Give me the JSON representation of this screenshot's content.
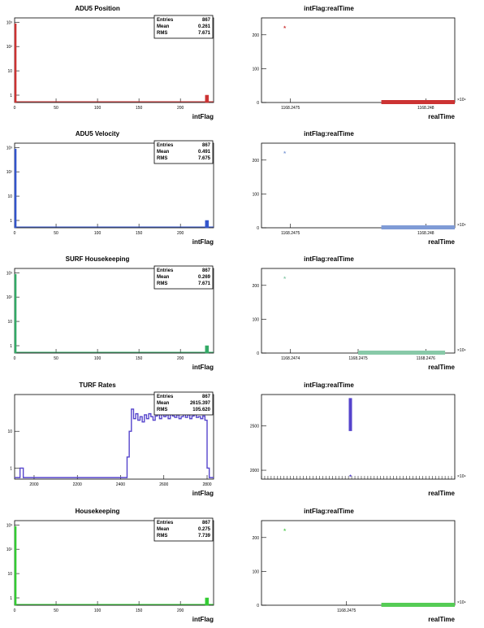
{
  "page": {
    "background": "#ffffff"
  },
  "chart_data": [
    {
      "id": "p0-hist",
      "type": "bar",
      "title": "ADU5 Position",
      "xlabel": "intFlag",
      "ylabel": "",
      "log_y": true,
      "color": "#cc3333",
      "stats": [
        {
          "k": "Entries",
          "v": "867"
        },
        {
          "k": "Mean",
          "v": "0.261"
        },
        {
          "k": "RMS",
          "v": "7.671"
        }
      ],
      "xticks": [
        "0",
        "50",
        "100",
        "150",
        "200"
      ],
      "yticks": [
        "1",
        "10",
        "10²",
        "10³"
      ],
      "xlim": [
        0,
        240
      ],
      "ylim": [
        0.5,
        1500
      ],
      "bars": [
        {
          "x": 0,
          "w": 2,
          "y": 866
        },
        {
          "x": 230,
          "w": 4,
          "y": 1
        }
      ]
    },
    {
      "id": "p0-scat",
      "type": "scatter",
      "title": "intFlag:realTime",
      "xlabel": "realTime",
      "ylabel": "",
      "color": "#cc3333",
      "x_exponent": "×10⁹",
      "xticks": [
        "1168.2475",
        "1168.248"
      ],
      "yticks": [
        "0",
        "100",
        "200"
      ],
      "ylim": [
        0,
        250
      ],
      "points": [
        {
          "x": 0.12,
          "y": 225
        }
      ],
      "band": {
        "x_from": 0.62,
        "x_to": 1.0,
        "y": 0
      }
    },
    {
      "id": "p1-hist",
      "type": "bar",
      "title": "ADU5 Velocity",
      "xlabel": "intFlag",
      "ylabel": "",
      "log_y": true,
      "color": "#3355cc",
      "stats": [
        {
          "k": "Entries",
          "v": "867"
        },
        {
          "k": "Mean",
          "v": "0.491"
        },
        {
          "k": "RMS",
          "v": "7.675"
        }
      ],
      "xticks": [
        "0",
        "50",
        "100",
        "150",
        "200"
      ],
      "yticks": [
        "1",
        "10",
        "10²",
        "10³"
      ],
      "xlim": [
        0,
        240
      ],
      "ylim": [
        0.5,
        1500
      ],
      "bars": [
        {
          "x": 0,
          "w": 2,
          "y": 866
        },
        {
          "x": 230,
          "w": 4,
          "y": 1
        }
      ]
    },
    {
      "id": "p1-scat",
      "type": "scatter",
      "title": "intFlag:realTime",
      "xlabel": "realTime",
      "ylabel": "",
      "color": "#7f9bd6",
      "x_exponent": "×10⁹",
      "xticks": [
        "1168.2475",
        "1168.248"
      ],
      "yticks": [
        "0",
        "100",
        "200"
      ],
      "ylim": [
        0,
        250
      ],
      "points": [
        {
          "x": 0.12,
          "y": 225
        }
      ],
      "band": {
        "x_from": 0.62,
        "x_to": 1.0,
        "y": 0
      }
    },
    {
      "id": "p2-hist",
      "type": "bar",
      "title": "SURF Housekeeping",
      "xlabel": "intFlag",
      "ylabel": "",
      "log_y": true,
      "color": "#33aa66",
      "stats": [
        {
          "k": "Entries",
          "v": "867"
        },
        {
          "k": "Mean",
          "v": "0.269"
        },
        {
          "k": "RMS",
          "v": "7.671"
        }
      ],
      "xticks": [
        "0",
        "50",
        "100",
        "150",
        "200"
      ],
      "yticks": [
        "1",
        "10",
        "10²",
        "10³"
      ],
      "xlim": [
        0,
        240
      ],
      "ylim": [
        0.5,
        1500
      ],
      "bars": [
        {
          "x": 0,
          "w": 2,
          "y": 866
        },
        {
          "x": 230,
          "w": 4,
          "y": 1
        }
      ]
    },
    {
      "id": "p2-scat",
      "type": "scatter",
      "title": "intFlag:realTime",
      "xlabel": "realTime",
      "ylabel": "",
      "color": "#88c9a8",
      "x_exponent": "×10⁹",
      "xticks": [
        "1168.2474",
        "1168.2475",
        "1168.2476"
      ],
      "yticks": [
        "0",
        "100",
        "200"
      ],
      "ylim": [
        0,
        250
      ],
      "points": [
        {
          "x": 0.12,
          "y": 225
        }
      ],
      "band": {
        "x_from": 0.5,
        "x_to": 0.95,
        "y": 0
      }
    },
    {
      "id": "p3-hist",
      "type": "bar",
      "title": "TURF Rates",
      "xlabel": "intFlag",
      "ylabel": "",
      "log_y": true,
      "color": "#5544cc",
      "stats": [
        {
          "k": "Entries",
          "v": "867"
        },
        {
          "k": "Mean",
          "v": "2615.397"
        },
        {
          "k": "RMS",
          "v": "105.620"
        }
      ],
      "xticks": [
        "2000",
        "2200",
        "2400",
        "2600",
        "2800"
      ],
      "yticks": [
        "1",
        "10"
      ],
      "xlim": [
        1910,
        2830
      ],
      "ylim": [
        0.5,
        100
      ],
      "baseline": 0.55,
      "steps": [
        [
          1910,
          0.55
        ],
        [
          1935,
          1
        ],
        [
          1950,
          0.55
        ],
        [
          2420,
          0.55
        ],
        [
          2430,
          2
        ],
        [
          2440,
          10
        ],
        [
          2450,
          40
        ],
        [
          2460,
          22
        ],
        [
          2470,
          30
        ],
        [
          2480,
          20
        ],
        [
          2490,
          25
        ],
        [
          2500,
          18
        ],
        [
          2510,
          28
        ],
        [
          2520,
          22
        ],
        [
          2530,
          30
        ],
        [
          2540,
          25
        ],
        [
          2550,
          20
        ],
        [
          2560,
          26
        ],
        [
          2570,
          40
        ],
        [
          2580,
          22
        ],
        [
          2590,
          30
        ],
        [
          2600,
          25
        ],
        [
          2610,
          28
        ],
        [
          2620,
          22
        ],
        [
          2630,
          30
        ],
        [
          2640,
          26
        ],
        [
          2650,
          24
        ],
        [
          2660,
          28
        ],
        [
          2670,
          22
        ],
        [
          2680,
          25
        ],
        [
          2690,
          30
        ],
        [
          2700,
          24
        ],
        [
          2710,
          28
        ],
        [
          2720,
          22
        ],
        [
          2730,
          26
        ],
        [
          2740,
          30
        ],
        [
          2750,
          24
        ],
        [
          2760,
          25
        ],
        [
          2770,
          22
        ],
        [
          2780,
          26
        ],
        [
          2790,
          20
        ],
        [
          2800,
          1
        ],
        [
          2810,
          0.55
        ],
        [
          2830,
          0.55
        ]
      ]
    },
    {
      "id": "p3-scat",
      "type": "scatter",
      "title": "intFlag:realTime",
      "xlabel": "realTime",
      "ylabel": "",
      "color": "#5544cc",
      "x_exponent": "×10⁹",
      "xticks": [],
      "yticks": [
        "2000",
        "2500"
      ],
      "ylim": [
        1900,
        2850
      ],
      "points": [
        {
          "x": 0.46,
          "y": 1945
        }
      ],
      "bar_segment": {
        "x": 0.46,
        "y_from": 2440,
        "y_to": 2810
      }
    },
    {
      "id": "p4-hist",
      "type": "bar",
      "title": "Housekeeping",
      "xlabel": "intFlag",
      "ylabel": "",
      "log_y": true,
      "color": "#33cc33",
      "stats": [
        {
          "k": "Entries",
          "v": "867"
        },
        {
          "k": "Mean",
          "v": "0.275"
        },
        {
          "k": "RMS",
          "v": "7.739"
        }
      ],
      "xticks": [
        "0",
        "50",
        "100",
        "150",
        "200"
      ],
      "yticks": [
        "1",
        "10",
        "10²",
        "10³"
      ],
      "xlim": [
        0,
        240
      ],
      "ylim": [
        0.5,
        1500
      ],
      "bars": [
        {
          "x": 0,
          "w": 2,
          "y": 866
        },
        {
          "x": 230,
          "w": 4,
          "y": 1
        }
      ]
    },
    {
      "id": "p4-scat",
      "type": "scatter",
      "title": "intFlag:realTime",
      "xlabel": "realTime",
      "ylabel": "",
      "color": "#55cc55",
      "x_exponent": "×10⁹",
      "xticks": [
        "1168.2475"
      ],
      "yticks": [
        "0",
        "100",
        "200"
      ],
      "ylim": [
        0,
        250
      ],
      "points": [
        {
          "x": 0.12,
          "y": 225
        }
      ],
      "band": {
        "x_from": 0.62,
        "x_to": 1.0,
        "y": 0
      }
    }
  ]
}
